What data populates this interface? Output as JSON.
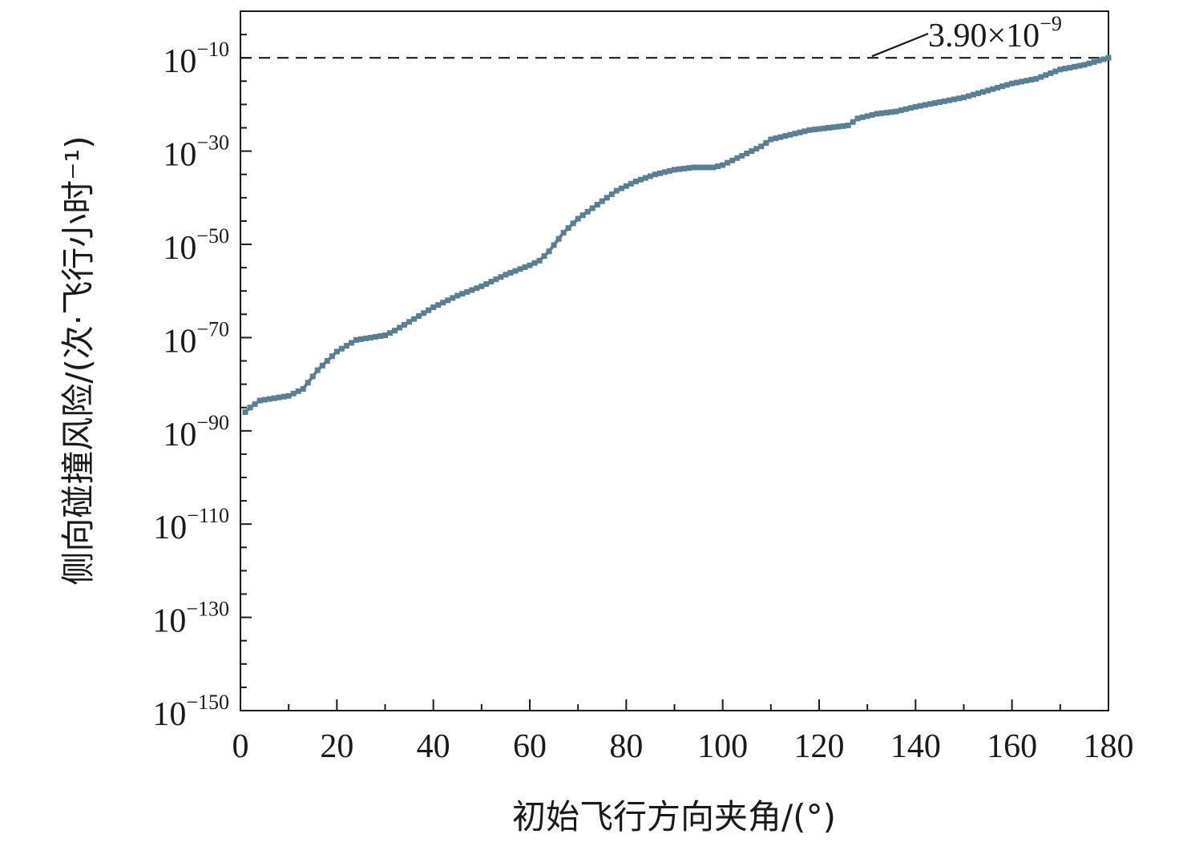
{
  "chart_data": {
    "type": "line",
    "xlabel": "初始飞行方向夹角/(°)",
    "ylabel": "侧向碰撞风险/(次·飞行小时⁻¹)",
    "xlim": [
      0,
      180
    ],
    "ylim_log10": [
      -150,
      0
    ],
    "yscale": "log",
    "x_ticks": [
      0,
      20,
      40,
      60,
      80,
      100,
      120,
      140,
      160,
      180
    ],
    "x_tick_labels": [
      "0",
      "20",
      "40",
      "60",
      "80",
      "100",
      "120",
      "140",
      "160",
      "180"
    ],
    "y_tick_exponents": [
      -10,
      -30,
      -50,
      -70,
      -90,
      -110,
      -130,
      -150
    ],
    "y_tick_base": "10",
    "y_tick_exponent_labels": [
      "−10",
      "−30",
      "−50",
      "−70",
      "−90",
      "−110",
      "−130",
      "−150"
    ],
    "series_color": "#5b7f90",
    "series": [
      {
        "x": [
          1,
          2,
          4,
          10,
          13,
          16,
          20,
          24,
          27,
          30,
          32,
          36,
          40,
          45,
          50,
          55,
          60,
          62,
          64,
          67,
          70,
          74,
          78,
          82,
          86,
          90,
          94,
          98,
          100,
          104,
          108,
          110,
          114,
          118,
          122,
          126,
          128,
          132,
          136,
          140,
          145,
          150,
          155,
          160,
          165,
          170,
          175,
          180
        ],
        "log10_y": [
          -86,
          -85,
          -83.5,
          -82.5,
          -81,
          -77,
          -73,
          -70.5,
          -70,
          -69.5,
          -68.5,
          -66,
          -63.5,
          -61,
          -59,
          -56.5,
          -54.5,
          -53.5,
          -51.5,
          -47.5,
          -44.5,
          -41.5,
          -38.5,
          -36.5,
          -35,
          -34,
          -33.5,
          -33.5,
          -33,
          -31,
          -29,
          -27.5,
          -26.5,
          -25.5,
          -25,
          -24.5,
          -23,
          -22,
          -21.5,
          -20.5,
          -19.5,
          -18.5,
          -17,
          -15.5,
          -14.5,
          -12.5,
          -11.5,
          -10
        ]
      }
    ],
    "threshold": {
      "log10_y": -10,
      "style": "dashed",
      "label_mantissa": "3.90×10",
      "label_exponent": "−9"
    }
  }
}
